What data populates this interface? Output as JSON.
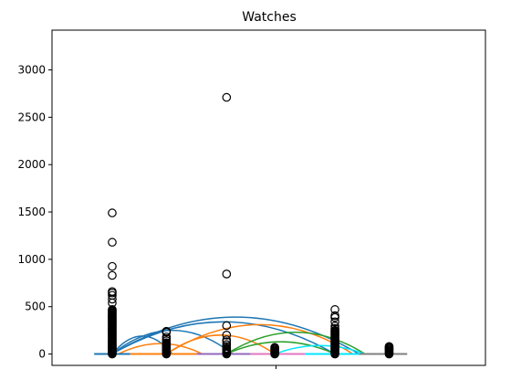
{
  "chart_data": {
    "type": "scatter",
    "title": "Watches",
    "xlabel": "",
    "ylabel": "",
    "ylim": [
      -120,
      3420
    ],
    "xlim": [
      0,
      7.2
    ],
    "yticks": [
      0,
      500,
      1000,
      1500,
      2000,
      2500,
      3000
    ],
    "xticks": [
      ""
    ],
    "grid": false,
    "legend": "none",
    "groups": [
      {
        "x": 1.0,
        "points": [
          0,
          5,
          10,
          20,
          30,
          40,
          50,
          60,
          70,
          80,
          90,
          100,
          110,
          120,
          130,
          140,
          150,
          160,
          170,
          180,
          190,
          200,
          210,
          220,
          230,
          240,
          250,
          260,
          270,
          280,
          290,
          300,
          310,
          320,
          330,
          340,
          350,
          360,
          370,
          380,
          390,
          400,
          410,
          420,
          430,
          440,
          450,
          460,
          470,
          540,
          580,
          620,
          645,
          660,
          830,
          925,
          1180,
          1490
        ]
      },
      {
        "x": 1.9,
        "points": [
          0,
          10,
          20,
          30,
          40,
          50,
          60,
          70,
          80,
          90,
          100,
          110,
          120,
          140,
          160,
          180,
          230,
          240
        ]
      },
      {
        "x": 2.9,
        "points": [
          0,
          10,
          20,
          30,
          40,
          50,
          60,
          80,
          100,
          130,
          150,
          200,
          300,
          845,
          2710
        ]
      },
      {
        "x": 3.7,
        "points": [
          0,
          5,
          10,
          20,
          30,
          40,
          50,
          60,
          70
        ]
      },
      {
        "x": 4.7,
        "points": [
          0,
          10,
          20,
          30,
          40,
          50,
          60,
          70,
          80,
          90,
          100,
          110,
          120,
          130,
          140,
          150,
          160,
          170,
          180,
          190,
          200,
          210,
          220,
          230,
          240,
          250,
          270,
          295,
          340,
          385,
          405,
          470
        ]
      },
      {
        "x": 5.6,
        "points": [
          0,
          10,
          20,
          30,
          40,
          50,
          60,
          70,
          80
        ]
      }
    ],
    "baselines": [
      {
        "x0": 0.7,
        "x1": 1.3,
        "color": "#1f77b4"
      },
      {
        "x0": 1.3,
        "x1": 2.4,
        "color": "#ff7f0e"
      },
      {
        "x0": 2.4,
        "x1": 3.3,
        "color": "#9467bd"
      },
      {
        "x0": 3.3,
        "x1": 4.2,
        "color": "#e377c2"
      },
      {
        "x0": 4.2,
        "x1": 5.1,
        "color": "#00e5ff"
      },
      {
        "x0": 5.1,
        "x1": 5.9,
        "color": "#7f7f7f"
      }
    ],
    "arcs": [
      {
        "from": 1.0,
        "to": 5.1,
        "peak": 390,
        "color": "#1f77b4"
      },
      {
        "from": 1.0,
        "to": 4.7,
        "peak": 340,
        "color": "#1f77b4"
      },
      {
        "from": 1.0,
        "to": 3.0,
        "peak": 250,
        "color": "#1f77b4"
      },
      {
        "from": 1.0,
        "to": 2.0,
        "peak": 190,
        "color": "#1f77b4"
      },
      {
        "from": 1.9,
        "to": 5.0,
        "peak": 310,
        "color": "#ff7f0e"
      },
      {
        "from": 1.9,
        "to": 3.7,
        "peak": 200,
        "color": "#ff7f0e"
      },
      {
        "from": 1.1,
        "to": 2.5,
        "peak": 110,
        "color": "#ff7f0e"
      },
      {
        "from": 2.9,
        "to": 5.2,
        "peak": 230,
        "color": "#2ca02c"
      },
      {
        "from": 2.9,
        "to": 4.7,
        "peak": 130,
        "color": "#2ca02c"
      },
      {
        "from": 3.7,
        "to": 5.2,
        "peak": 90,
        "color": "#00e5ff"
      }
    ]
  }
}
